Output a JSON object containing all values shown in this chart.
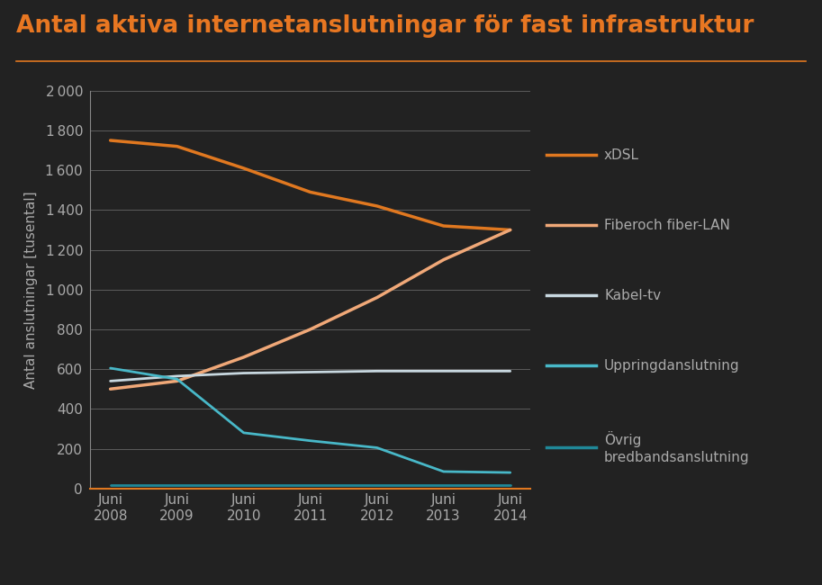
{
  "title": "Antal aktiva internetanslutningar för fast infrastruktur",
  "ylabel": "Antal anslutningar [tusental]",
  "background_color": "#222222",
  "title_color": "#e87722",
  "axis_color": "#888888",
  "grid_color": "#666666",
  "text_color": "#aaaaaa",
  "x_labels": [
    "Juni\n2008",
    "Juni\n2009",
    "Juni\n2010",
    "Juni\n2011",
    "Juni\n2012",
    "Juni\n2013",
    "Juni\n2014"
  ],
  "x_values": [
    0,
    1,
    2,
    3,
    4,
    5,
    6
  ],
  "series": [
    {
      "name": "xDSL",
      "color": "#e07820",
      "linewidth": 2.5,
      "values": [
        1750,
        1720,
        1610,
        1490,
        1420,
        1320,
        1300
      ]
    },
    {
      "name": "Fiberoch fiber-LAN",
      "color": "#f0a878",
      "linewidth": 2.5,
      "values": [
        500,
        540,
        660,
        800,
        960,
        1150,
        1300
      ]
    },
    {
      "name": "Kabel-tv",
      "color": "#c8d8e0",
      "linewidth": 2.0,
      "values": [
        540,
        565,
        580,
        585,
        590,
        590,
        590
      ]
    },
    {
      "name": "Uppringdanslutning",
      "color": "#48b8c8",
      "linewidth": 2.0,
      "values": [
        605,
        550,
        280,
        240,
        205,
        85,
        80
      ]
    },
    {
      "name": "Övrig\nbredbandsanslutning",
      "color": "#208898",
      "linewidth": 2.0,
      "values": [
        15,
        15,
        15,
        15,
        15,
        15,
        15
      ]
    }
  ],
  "ylim": [
    0,
    2000
  ],
  "yticks": [
    0,
    200,
    400,
    600,
    800,
    1000,
    1200,
    1400,
    1600,
    1800,
    2000
  ],
  "title_fontsize": 19,
  "axis_label_fontsize": 11,
  "tick_fontsize": 11,
  "legend_fontsize": 11,
  "title_line_color": "#e07820",
  "bottom_spine_color": "#e07820",
  "legend_entries": [
    {
      "name": "xDSL",
      "color": "#e07820"
    },
    {
      "name": "Fiberoch fiber-LAN",
      "color": "#f0a878"
    },
    {
      "name": "Kabel-tv",
      "color": "#c8d8e0"
    },
    {
      "name": "Uppringdanslutning",
      "color": "#48b8c8"
    },
    {
      "name": "Övrig\nbredbandsanslutning",
      "color": "#208898"
    }
  ]
}
